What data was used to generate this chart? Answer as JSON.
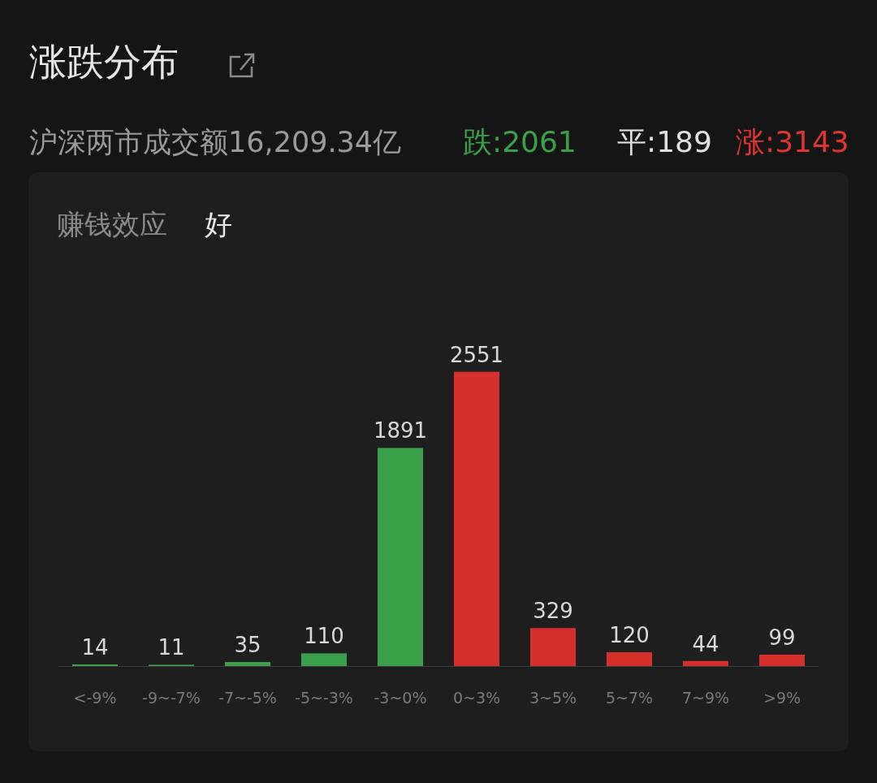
{
  "chart_data": {
    "type": "bar",
    "title": "涨跌分布",
    "subtitle": "沪深两市成交额16,209.34亿",
    "annotations": [
      "跌:2061",
      "平:189",
      "涨:3143",
      "赚钱效应",
      "好"
    ],
    "categories": [
      "<-9%",
      "-9~-7%",
      "-7~-5%",
      "-5~-3%",
      "-3~0%",
      "0~3%",
      "3~5%",
      "5~7%",
      "7~9%",
      ">9%"
    ],
    "values": [
      14,
      11,
      35,
      110,
      1891,
      2551,
      329,
      120,
      44,
      99
    ],
    "colors": [
      "#3aa14a",
      "#3aa14a",
      "#3aa14a",
      "#3aa14a",
      "#3aa14a",
      "#d6302c",
      "#d6302c",
      "#d6302c",
      "#d6302c",
      "#d6302c"
    ],
    "data_labels": true
  }
}
